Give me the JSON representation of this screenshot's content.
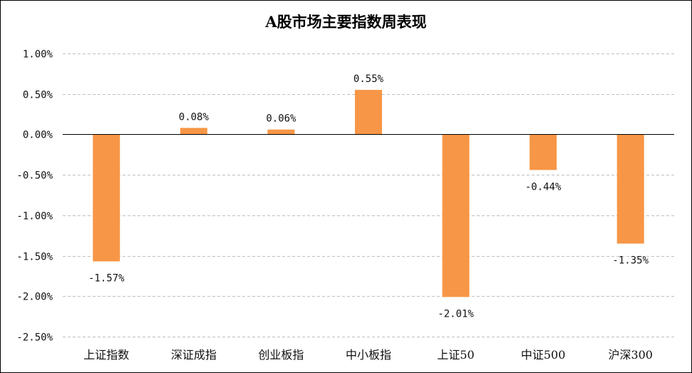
{
  "chart_data": {
    "type": "bar",
    "title": "A股市场主要指数周表现",
    "categories": [
      "上证指数",
      "深证成指",
      "创业板指",
      "中小板指",
      "上证50",
      "中证500",
      "沪深300"
    ],
    "values": [
      -1.57,
      0.08,
      0.06,
      0.55,
      -2.01,
      -0.44,
      -1.35
    ],
    "value_labels": [
      "-1.57%",
      "0.08%",
      "0.06%",
      "0.55%",
      "-2.01%",
      "-0.44%",
      "-1.35%"
    ],
    "y_ticks": [
      1.0,
      0.5,
      0.0,
      -0.5,
      -1.0,
      -1.5,
      -2.0,
      -2.5
    ],
    "y_tick_labels": [
      "1.00%",
      "0.50%",
      "0.00%",
      "-0.50%",
      "-1.00%",
      "-1.50%",
      "-2.00%",
      "-2.50%"
    ],
    "ylim": [
      -2.5,
      1.0
    ],
    "xlabel": "",
    "ylabel": "",
    "grid": true,
    "legend": "none",
    "bar_color": "#F79646",
    "grid_color": "#BFBFBF"
  }
}
